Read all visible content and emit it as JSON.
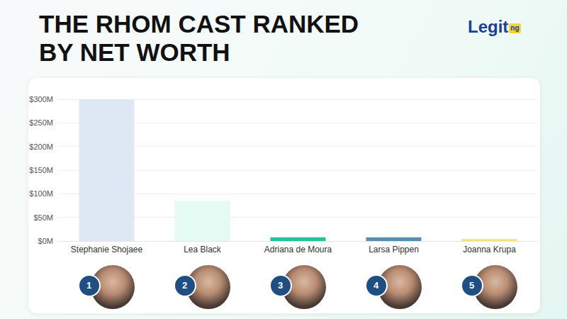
{
  "chart_data": {
    "type": "bar",
    "title": "THE RHOM CAST RANKED BY NET WORTH",
    "logo": "Legit",
    "logo_suffix": "ng",
    "categories": [
      "Stephanie Shojaee",
      "Lea Black",
      "Adriana de Moura",
      "Larsa Pippen",
      "Joanna Krupa"
    ],
    "values": [
      300,
      85,
      8,
      8,
      4
    ],
    "colors": [
      "#dde8f4",
      "#e4fbf3",
      "#22c29a",
      "#5a8eb0",
      "#f6e27c"
    ],
    "ranks": [
      1,
      2,
      3,
      4,
      5
    ],
    "ylim": [
      0,
      300
    ],
    "yticks": [
      {
        "value": 0,
        "label": "$0M"
      },
      {
        "value": 50,
        "label": "$50M"
      },
      {
        "value": 100,
        "label": "$100M"
      },
      {
        "value": 150,
        "label": "$150M"
      },
      {
        "value": 200,
        "label": "$200M"
      },
      {
        "value": 250,
        "label": "$250M"
      },
      {
        "value": 300,
        "label": "$300M"
      }
    ],
    "grid": true
  }
}
